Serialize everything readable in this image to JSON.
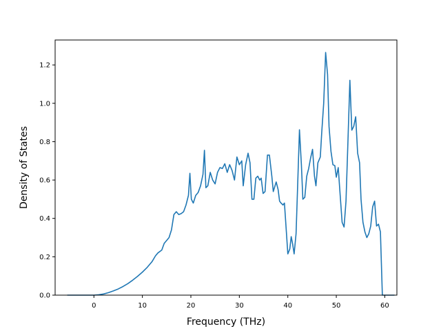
{
  "chart_data": {
    "type": "line",
    "title": "",
    "xlabel": "Frequency (THz)",
    "ylabel": "Density of States",
    "xlim": [
      -8,
      62.5
    ],
    "ylim": [
      0.0,
      1.33
    ],
    "x_ticks": [
      0,
      10,
      20,
      30,
      40,
      50,
      60
    ],
    "y_ticks": [
      0.0,
      0.2,
      0.4,
      0.6,
      0.8,
      1.0,
      1.2
    ],
    "x_tick_labels": [
      "0",
      "10",
      "20",
      "30",
      "40",
      "50",
      "60"
    ],
    "y_tick_labels": [
      "0.0",
      "0.2",
      "0.4",
      "0.6",
      "0.8",
      "1.0",
      "1.2"
    ],
    "grid": false,
    "series": [
      {
        "color": "#1f77b4",
        "points": [
          [
            -5.5,
            0.0
          ],
          [
            0.0,
            0.0
          ],
          [
            1.0,
            0.002
          ],
          [
            2.0,
            0.006
          ],
          [
            3.0,
            0.013
          ],
          [
            4.0,
            0.022
          ],
          [
            5.0,
            0.032
          ],
          [
            6.0,
            0.045
          ],
          [
            7.0,
            0.06
          ],
          [
            8.0,
            0.078
          ],
          [
            9.0,
            0.098
          ],
          [
            10.0,
            0.12
          ],
          [
            11.0,
            0.145
          ],
          [
            12.0,
            0.175
          ],
          [
            12.7,
            0.205
          ],
          [
            13.2,
            0.22
          ],
          [
            14.0,
            0.235
          ],
          [
            14.5,
            0.27
          ],
          [
            15.0,
            0.285
          ],
          [
            15.5,
            0.3
          ],
          [
            16.0,
            0.34
          ],
          [
            16.5,
            0.42
          ],
          [
            17.0,
            0.435
          ],
          [
            17.5,
            0.42
          ],
          [
            18.0,
            0.425
          ],
          [
            18.5,
            0.435
          ],
          [
            19.0,
            0.47
          ],
          [
            19.5,
            0.52
          ],
          [
            19.8,
            0.635
          ],
          [
            20.1,
            0.5
          ],
          [
            20.5,
            0.48
          ],
          [
            21.0,
            0.52
          ],
          [
            21.5,
            0.535
          ],
          [
            22.0,
            0.57
          ],
          [
            22.5,
            0.63
          ],
          [
            22.8,
            0.755
          ],
          [
            23.1,
            0.56
          ],
          [
            23.5,
            0.57
          ],
          [
            24.0,
            0.64
          ],
          [
            24.5,
            0.6
          ],
          [
            25.0,
            0.58
          ],
          [
            25.5,
            0.64
          ],
          [
            26.0,
            0.665
          ],
          [
            26.5,
            0.66
          ],
          [
            27.0,
            0.685
          ],
          [
            27.5,
            0.64
          ],
          [
            28.0,
            0.68
          ],
          [
            28.5,
            0.65
          ],
          [
            29.0,
            0.6
          ],
          [
            29.5,
            0.72
          ],
          [
            30.0,
            0.68
          ],
          [
            30.5,
            0.7
          ],
          [
            30.8,
            0.57
          ],
          [
            31.3,
            0.68
          ],
          [
            31.8,
            0.74
          ],
          [
            32.2,
            0.69
          ],
          [
            32.6,
            0.5
          ],
          [
            33.0,
            0.5
          ],
          [
            33.4,
            0.61
          ],
          [
            33.8,
            0.62
          ],
          [
            34.2,
            0.6
          ],
          [
            34.5,
            0.61
          ],
          [
            34.9,
            0.53
          ],
          [
            35.3,
            0.54
          ],
          [
            35.8,
            0.73
          ],
          [
            36.2,
            0.73
          ],
          [
            36.7,
            0.62
          ],
          [
            37.0,
            0.54
          ],
          [
            37.6,
            0.59
          ],
          [
            38.0,
            0.55
          ],
          [
            38.3,
            0.49
          ],
          [
            38.6,
            0.48
          ],
          [
            39.0,
            0.47
          ],
          [
            39.3,
            0.48
          ],
          [
            39.7,
            0.33
          ],
          [
            40.0,
            0.215
          ],
          [
            40.4,
            0.24
          ],
          [
            40.7,
            0.305
          ],
          [
            41.0,
            0.265
          ],
          [
            41.3,
            0.215
          ],
          [
            41.7,
            0.32
          ],
          [
            42.0,
            0.55
          ],
          [
            42.4,
            0.862
          ],
          [
            42.8,
            0.68
          ],
          [
            43.1,
            0.5
          ],
          [
            43.5,
            0.51
          ],
          [
            43.9,
            0.62
          ],
          [
            44.3,
            0.66
          ],
          [
            44.7,
            0.715
          ],
          [
            45.1,
            0.76
          ],
          [
            45.5,
            0.62
          ],
          [
            45.8,
            0.57
          ],
          [
            46.2,
            0.69
          ],
          [
            46.7,
            0.72
          ],
          [
            47.0,
            0.85
          ],
          [
            47.4,
            1.0
          ],
          [
            47.8,
            1.265
          ],
          [
            48.2,
            1.15
          ],
          [
            48.5,
            0.88
          ],
          [
            48.9,
            0.75
          ],
          [
            49.3,
            0.68
          ],
          [
            49.7,
            0.675
          ],
          [
            50.0,
            0.615
          ],
          [
            50.4,
            0.665
          ],
          [
            50.8,
            0.52
          ],
          [
            51.2,
            0.38
          ],
          [
            51.6,
            0.355
          ],
          [
            52.0,
            0.49
          ],
          [
            52.4,
            0.8
          ],
          [
            52.8,
            1.12
          ],
          [
            53.2,
            0.86
          ],
          [
            53.6,
            0.88
          ],
          [
            54.0,
            0.93
          ],
          [
            54.4,
            0.74
          ],
          [
            54.8,
            0.69
          ],
          [
            55.1,
            0.5
          ],
          [
            55.5,
            0.38
          ],
          [
            55.9,
            0.33
          ],
          [
            56.3,
            0.3
          ],
          [
            56.7,
            0.32
          ],
          [
            57.1,
            0.36
          ],
          [
            57.5,
            0.46
          ],
          [
            57.9,
            0.49
          ],
          [
            58.3,
            0.36
          ],
          [
            58.7,
            0.37
          ],
          [
            59.1,
            0.33
          ],
          [
            59.5,
            0.0
          ],
          [
            62.0,
            0.0
          ]
        ]
      }
    ]
  }
}
